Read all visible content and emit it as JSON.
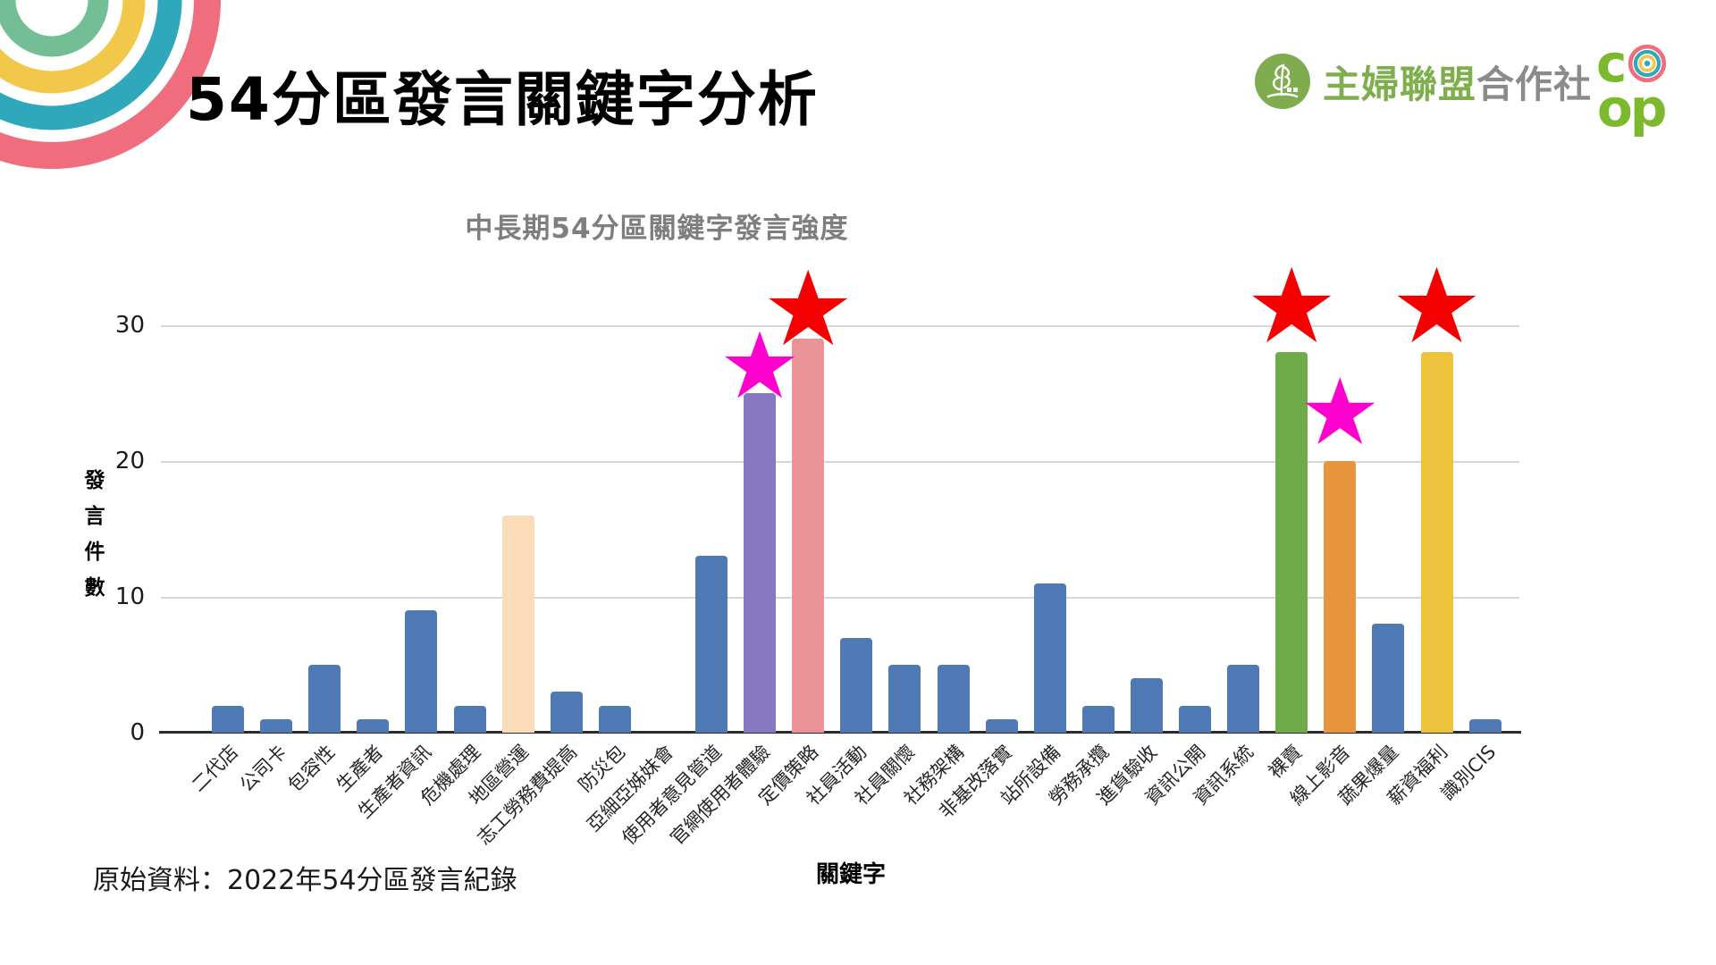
{
  "slide": {
    "title": "54分區發言關鍵字分析",
    "source_note": "原始資料：2022年54分區發言紀錄"
  },
  "logo": {
    "org_name_green": "主婦聯盟",
    "org_name_gray": "合作社",
    "coop_line1": "c",
    "coop_line2": "op"
  },
  "decoration": {
    "arc_colors_outer_to_inner": [
      "#F06D7E",
      "#2FA8BC",
      "#F2C84B",
      "#74BE95"
    ]
  },
  "chart_data": {
    "type": "bar",
    "title": "中長期54分區關鍵字發言強度",
    "xlabel": "關鍵字",
    "ylabel": "發言件數",
    "ylim": [
      0,
      30
    ],
    "yticks": [
      0,
      10,
      20,
      30
    ],
    "grid": true,
    "legend": false,
    "categories": [
      "二代店",
      "公司卡",
      "包容性",
      "生產者",
      "生產者資訊",
      "危機處理",
      "地區營運",
      "志工勞務費提高",
      "防災包",
      "亞細亞姊妹會",
      "使用者意見管道",
      "官網使用者體驗",
      "定價策略",
      "社員活動",
      "社員關懷",
      "社務架構",
      "非基改落實",
      "站所設備",
      "勞務承攬",
      "進貨驗收",
      "資訊公開",
      "資訊系統",
      "裸賣",
      "線上影音",
      "蔬果爆量",
      "薪資福利",
      "識別CIS"
    ],
    "values": [
      2,
      1,
      5,
      1,
      9,
      2,
      16,
      3,
      2,
      0,
      13,
      25,
      29,
      7,
      5,
      5,
      1,
      11,
      2,
      4,
      2,
      5,
      28,
      20,
      8,
      28,
      1
    ],
    "default_bar_color": "#4E79B4",
    "highlight_bars": {
      "6": "#FBDCB9",
      "11": "#8878C0",
      "12": "#EC9398",
      "22": "#6FAC49",
      "23": "#E8943D",
      "25": "#EDC33D"
    },
    "annotations": [
      {
        "category_index": 11,
        "shape": "star",
        "color": "#FF00CE",
        "y": 27.0,
        "size": 78
      },
      {
        "category_index": 12,
        "shape": "star",
        "color": "#F50000",
        "y": 31.2,
        "size": 88
      },
      {
        "category_index": 22,
        "shape": "star",
        "color": "#F50000",
        "y": 31.4,
        "size": 88
      },
      {
        "category_index": 23,
        "shape": "star",
        "color": "#FF00CE",
        "y": 23.6,
        "size": 78
      },
      {
        "category_index": 25,
        "shape": "star",
        "color": "#F50000",
        "y": 31.4,
        "size": 88
      }
    ]
  }
}
